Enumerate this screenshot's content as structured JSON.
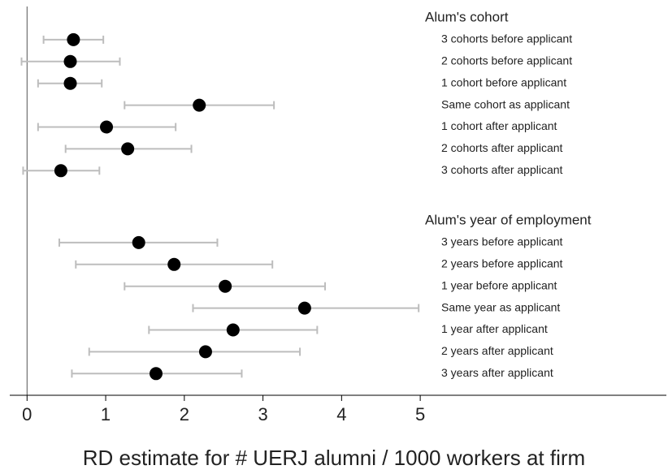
{
  "chart_data": {
    "type": "coefplot",
    "x_label": "RD estimate for # UERJ alumni / 1000 workers at firm",
    "xlim": [
      -0.22,
      8.13
    ],
    "xticks": [
      0,
      1,
      2,
      3,
      4,
      5
    ],
    "point_color": "#000000",
    "ci_color": "#bdbdbd",
    "groups": [
      {
        "title": "Alum's cohort",
        "categories": [
          "3 cohorts before applicant",
          "2 cohorts before applicant",
          "1 cohort  before applicant",
          "Same cohort as applicant",
          "1 cohort after applicant",
          "2 cohorts after applicant",
          "3 cohorts after applicant"
        ],
        "values": [
          0.59,
          0.55,
          0.55,
          2.19,
          1.01,
          1.28,
          0.43
        ],
        "low": [
          0.21,
          -0.07,
          0.14,
          1.24,
          0.14,
          0.49,
          -0.05
        ],
        "high": [
          0.97,
          1.18,
          0.95,
          3.14,
          1.89,
          2.09,
          0.92
        ]
      },
      {
        "title": "Alum's year of employment",
        "categories": [
          "3 years before applicant",
          "2 years before applicant",
          "1 year  before applicant",
          "Same year as applicant",
          "1 year after applicant",
          "2 years after applicant",
          "3 years after applicant"
        ],
        "values": [
          1.42,
          1.87,
          2.52,
          3.53,
          2.62,
          2.27,
          1.64
        ],
        "low": [
          0.41,
          0.62,
          1.24,
          2.11,
          1.55,
          0.79,
          0.57
        ],
        "high": [
          2.42,
          3.12,
          3.79,
          4.98,
          3.69,
          3.47,
          2.73
        ]
      }
    ]
  }
}
